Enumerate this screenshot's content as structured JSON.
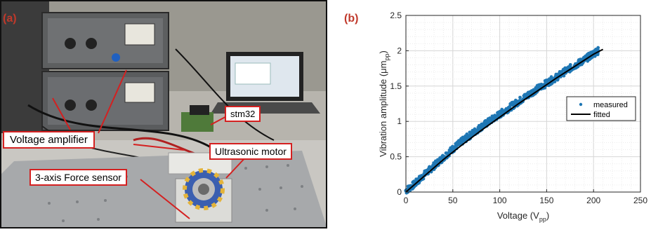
{
  "panel_a": {
    "tag": "(a)",
    "labels": {
      "stm32": "stm32",
      "voltage_amplifier": "Voltage amplifier",
      "ultrasonic_motor": "Ultrasonic motor",
      "force_sensor": "3-axis Force sensor"
    },
    "colors": {
      "callout_border": "#d42020",
      "tag": "#c0392b"
    }
  },
  "panel_b": {
    "tag": "(b)"
  },
  "chart_data": {
    "type": "scatter",
    "xlabel": "Voltage (V",
    "xlabel_sub": "pp",
    "xlabel_end": ")",
    "ylabel": "Vibration amplitude (μm",
    "ylabel_sub": "pp",
    "ylabel_end": ")",
    "xlim": [
      0,
      250
    ],
    "ylim": [
      0,
      2.5
    ],
    "xticks": [
      0,
      50,
      100,
      150,
      200,
      250
    ],
    "yticks": [
      0,
      0.5,
      1,
      1.5,
      2,
      2.5
    ],
    "xtick_labels": [
      "0",
      "50",
      "100",
      "150",
      "200",
      "250"
    ],
    "ytick_labels": [
      "0",
      "0.5",
      "1",
      "1.5",
      "2",
      "2.5"
    ],
    "grid": true,
    "legend_position": "right",
    "series": [
      {
        "name": "measured",
        "kind": "points",
        "color": "#1f77b4",
        "x": [
          0,
          10,
          20,
          30,
          40,
          50,
          60,
          70,
          80,
          90,
          100,
          110,
          120,
          130,
          140,
          150,
          160,
          170,
          180,
          190,
          200,
          205
        ],
        "y": [
          0.02,
          0.12,
          0.25,
          0.37,
          0.49,
          0.61,
          0.72,
          0.82,
          0.92,
          1.01,
          1.1,
          1.19,
          1.28,
          1.37,
          1.46,
          1.54,
          1.62,
          1.71,
          1.79,
          1.87,
          1.96,
          2.0
        ],
        "spread": 0.05
      },
      {
        "name": "fitted",
        "kind": "line",
        "color": "#000000",
        "x": [
          0,
          20,
          40,
          60,
          80,
          100,
          120,
          140,
          160,
          180,
          200,
          210
        ],
        "y": [
          0.0,
          0.23,
          0.46,
          0.67,
          0.87,
          1.06,
          1.25,
          1.43,
          1.61,
          1.78,
          1.95,
          2.02
        ]
      }
    ]
  }
}
